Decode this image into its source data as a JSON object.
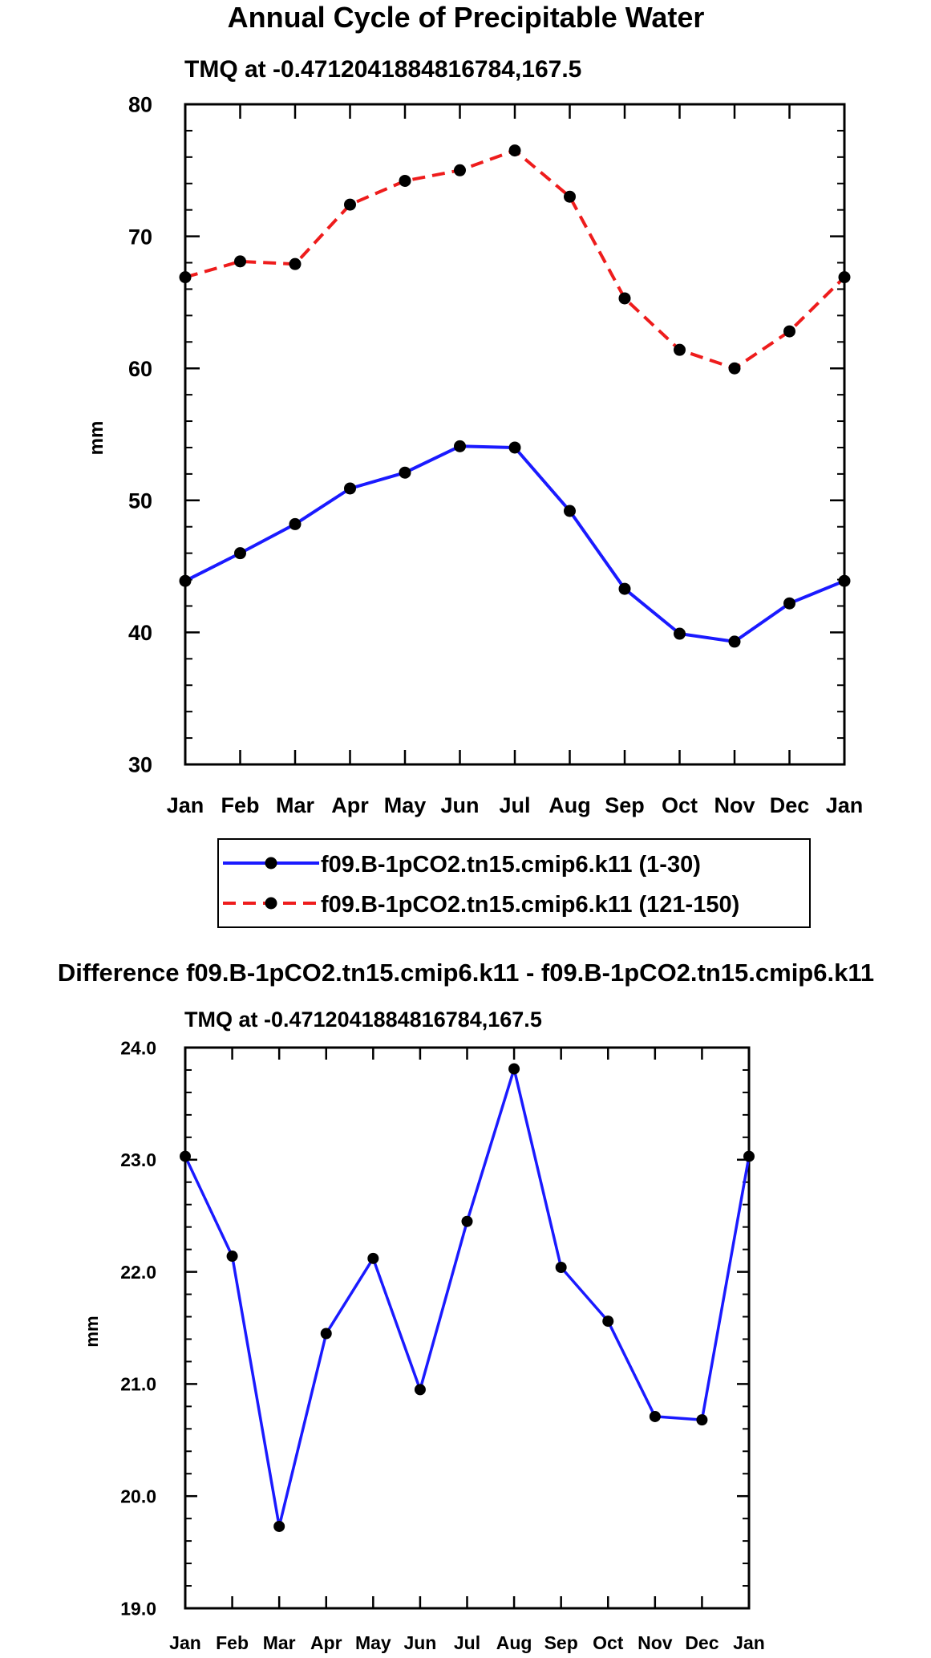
{
  "figure_title": "Annual Cycle of Precipitable Water",
  "colors": {
    "series_1": "#1a1aff",
    "series_2": "#ee1c1c",
    "marker": "#000000",
    "axis": "#000000"
  },
  "chart_data": [
    {
      "type": "line",
      "title": "Annual Cycle of Precipitable Water",
      "subtitle": "TMQ at -0.4712041884816784,167.5",
      "xlabel": "",
      "ylabel": "mm",
      "categories": [
        "Jan",
        "Feb",
        "Mar",
        "Apr",
        "May",
        "Jun",
        "Jul",
        "Aug",
        "Sep",
        "Oct",
        "Nov",
        "Dec",
        "Jan"
      ],
      "ylim": [
        30,
        80
      ],
      "yticks": [
        30,
        40,
        50,
        60,
        70,
        80
      ],
      "ytick_labels": [
        "30",
        "40",
        "50",
        "60",
        "70",
        "80"
      ],
      "grid": false,
      "legend_position": "bottom",
      "series": [
        {
          "name": "f09.B-1pCO2.tn15.cmip6.k11 (1-30)",
          "color": "#1a1aff",
          "dash": "solid",
          "values": [
            43.9,
            46.0,
            48.2,
            50.9,
            52.1,
            54.1,
            54.0,
            49.2,
            43.3,
            39.9,
            39.3,
            42.2,
            43.9
          ]
        },
        {
          "name": "f09.B-1pCO2.tn15.cmip6.k11 (121-150)",
          "color": "#ee1c1c",
          "dash": "dashed",
          "values": [
            66.9,
            68.1,
            67.9,
            72.4,
            74.2,
            75.0,
            76.5,
            73.0,
            65.3,
            61.4,
            60.0,
            62.8,
            66.9
          ]
        }
      ]
    },
    {
      "type": "line",
      "title": "Difference f09.B-1pCO2.tn15.cmip6.k11 - f09.B-1pCO2.tn15.cmip6.k11",
      "subtitle": "TMQ at -0.4712041884816784,167.5",
      "xlabel": "",
      "ylabel": "mm",
      "categories": [
        "Jan",
        "Feb",
        "Mar",
        "Apr",
        "May",
        "Jun",
        "Jul",
        "Aug",
        "Sep",
        "Oct",
        "Nov",
        "Dec",
        "Jan"
      ],
      "ylim": [
        19.0,
        24.0
      ],
      "yticks": [
        19.0,
        20.0,
        21.0,
        22.0,
        23.0,
        24.0
      ],
      "ytick_labels": [
        "19.0",
        "20.0",
        "21.0",
        "22.0",
        "23.0",
        "24.0"
      ],
      "grid": false,
      "series": [
        {
          "name": "Difference",
          "color": "#1a1aff",
          "dash": "solid",
          "values": [
            23.03,
            22.14,
            19.73,
            21.45,
            22.12,
            20.95,
            22.45,
            23.81,
            22.04,
            21.56,
            20.71,
            20.68,
            23.03
          ]
        }
      ]
    }
  ]
}
